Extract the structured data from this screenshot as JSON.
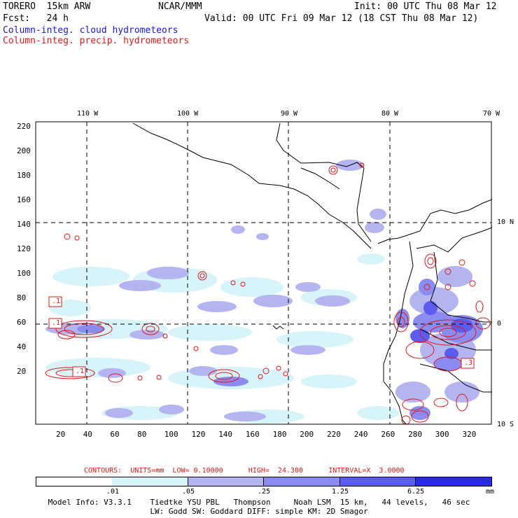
{
  "header": {
    "model": "TORERO  15km ARW",
    "center": "NCAR/MMM",
    "init": "Init: 00 UTC Thu 08 Mar 12",
    "fcst": "Fcst:   24 h",
    "valid": "Valid: 00 UTC Fri 09 Mar 12 (18 CST Thu 08 Mar 12)",
    "field_cloud": "Column-integ. cloud hydrometeors",
    "field_precip": "Column-integ. precip. hydrometeors"
  },
  "colors": {
    "cloud_field": "#1a1ad0",
    "precip_contour": "#e01818",
    "shade_1": "#d6f4fa",
    "shade_2": "#b4b4f0",
    "shade_3": "#8c8cf0",
    "shade_4": "#5c5cf0",
    "shade_5": "#2a2ae6"
  },
  "map": {
    "lon_labels": [
      "110 W",
      "100 W",
      "90 W",
      "80 W",
      "70 W"
    ],
    "lat_labels": [
      "10 N",
      "0",
      "10 S"
    ],
    "x_ticks": [
      "20",
      "40",
      "60",
      "80",
      "100",
      "120",
      "140",
      "160",
      "180",
      "200",
      "220",
      "240",
      "260",
      "280",
      "300",
      "320"
    ],
    "y_ticks": [
      "220",
      "200",
      "180",
      "160",
      "140",
      "120",
      "100",
      "80",
      "60",
      "40",
      "20"
    ],
    "contour_labels": [
      ".1",
      ".1",
      ".1",
      ".3"
    ]
  },
  "contours_info": {
    "text": "CONTOURS:  UNITS=mm  LOW= 0.10000      HIGH=  24.300      INTERVAL=X  3.0000"
  },
  "colorbar": {
    "labels": [
      ".01",
      ".05",
      ".25",
      "1.25",
      "6.25"
    ],
    "unit": "mm"
  },
  "footer": {
    "line1": "Model Info: V3.3.1    Tiedtke YSU PBL   Thompson     Noah LSM  15 km,   44 levels,   46 sec",
    "line2": "LW: Godd SW: Goddard DIFF: simple KM: 2D Smagor"
  }
}
